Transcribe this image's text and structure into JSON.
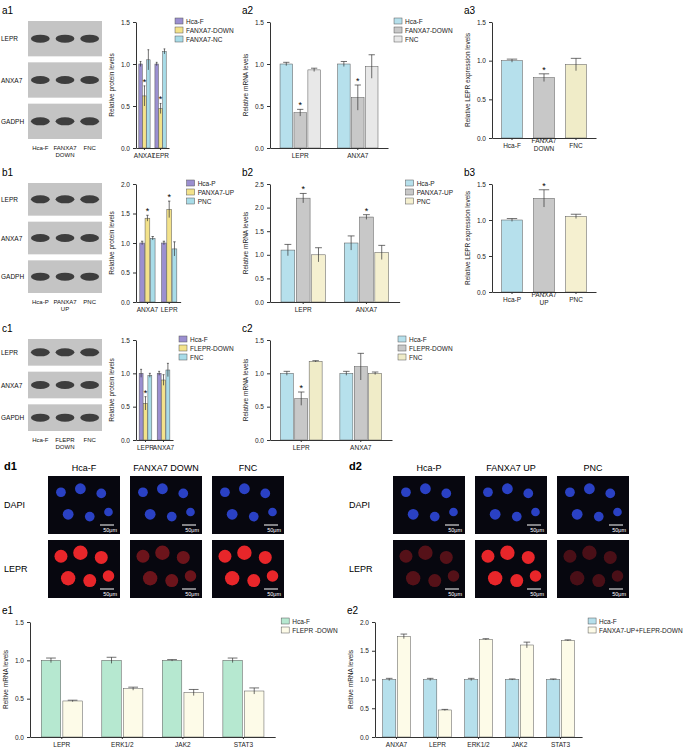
{
  "chart_data": [
    {
      "type": "bar",
      "y_label": "Relative protein levels",
      "categories": [
        "ANXA7",
        "LEPR"
      ],
      "series": [
        {
          "name": "Hca-F",
          "color": "#9b8fd0",
          "values": [
            1.0,
            1.0
          ],
          "errors": [
            0.03,
            0.02
          ]
        },
        {
          "name": "FANXA7-DOWN",
          "color": "#f3e28a",
          "values": [
            0.62,
            0.47
          ],
          "errors": [
            0.12,
            0.06
          ],
          "annotations": [
            "*",
            "*"
          ]
        },
        {
          "name": "FANXA7-NC",
          "color": "#a8dce8",
          "values": [
            1.05,
            1.15
          ],
          "errors": [
            0.12,
            0.03
          ]
        }
      ],
      "ylim": [
        0,
        1.5
      ],
      "yticks": [
        {
          "value": 0,
          "label": "0.0"
        },
        0.5,
        {
          "value": 1,
          "label": "1.0"
        },
        1.5
      ],
      "legend": "right"
    },
    {
      "type": "bar",
      "panel": "a2",
      "y_label": "Relative mRNA levels",
      "categories": [
        "LEPR",
        "ANXA7"
      ],
      "series": [
        {
          "name": "Hca-F",
          "color": "#b6e0ec",
          "values": [
            1.0,
            1.0
          ],
          "errors": [
            0.02,
            0.03
          ]
        },
        {
          "name": "FANXA7-DOWN",
          "color": "#c8c8c8",
          "values": [
            0.42,
            0.6
          ],
          "errors": [
            0.04,
            0.15
          ],
          "annotations": [
            "*",
            "*"
          ]
        },
        {
          "name": "FNC",
          "color": "#e8e8e8",
          "values": [
            0.93,
            0.97
          ],
          "errors": [
            0.02,
            0.14
          ]
        }
      ],
      "ylim": [
        0,
        1.5
      ],
      "yticks": [
        {
          "value": 0,
          "label": "0.0"
        },
        0.5,
        {
          "value": 1,
          "label": "1.0"
        },
        1.5
      ],
      "legend": "right"
    },
    {
      "type": "bar",
      "panel": "a3",
      "y_label": "Relative LEPR expression levels",
      "categories": [
        "Hca-F",
        "FANXA7 DOWN",
        "FNC"
      ],
      "values": [
        1.0,
        0.78,
        0.95
      ],
      "errors": [
        0.02,
        0.05,
        0.08
      ],
      "colors": [
        "#b6e0ec",
        "#c8c8c8",
        "#f0ecc8"
      ],
      "annotations": [
        null,
        "*",
        null
      ],
      "ylim": [
        0,
        1.5
      ],
      "yticks": [
        {
          "value": 0,
          "label": "0.0"
        },
        0.5,
        {
          "value": 1,
          "label": "1.0"
        },
        1.5
      ]
    },
    {
      "type": "bar",
      "y_label": "Relative protein levels",
      "categories": [
        "ANXA7",
        "LEPR"
      ],
      "series": [
        {
          "name": "Hca-P",
          "color": "#9b8fd0",
          "values": [
            1.0,
            1.0
          ],
          "errors": [
            0.03,
            0.03
          ]
        },
        {
          "name": "PANXA7-UP",
          "color": "#f3e28a",
          "values": [
            1.42,
            1.57
          ],
          "errors": [
            0.05,
            0.14
          ],
          "annotations": [
            "*",
            "*"
          ]
        },
        {
          "name": "PNC",
          "color": "#a8dce8",
          "values": [
            1.08,
            0.9
          ],
          "errors": [
            0.03,
            0.12
          ]
        }
      ],
      "ylim": [
        0,
        2
      ],
      "yticks": [
        {
          "value": 0,
          "label": "0.0"
        },
        0.5,
        {
          "value": 1,
          "label": "1.0"
        },
        1.5,
        {
          "value": 2,
          "label": "2.0"
        }
      ],
      "legend": "right"
    },
    {
      "type": "bar",
      "panel": "b2",
      "y_label": "Relative mRNA levels",
      "categories": [
        "LEPR",
        "ANXA7"
      ],
      "series": [
        {
          "name": "Hca-P",
          "color": "#b6e0ec",
          "values": [
            1.1,
            1.25
          ],
          "errors": [
            0.12,
            0.15
          ]
        },
        {
          "name": "PANXA7-UP",
          "color": "#c8c8c8",
          "values": [
            2.2,
            1.8
          ],
          "errors": [
            0.1,
            0.05
          ],
          "annotations": [
            "*",
            "*"
          ]
        },
        {
          "name": "PNC",
          "color": "#f5f0d0",
          "values": [
            1.0,
            1.05
          ],
          "errors": [
            0.15,
            0.15
          ]
        }
      ],
      "ylim": [
        0,
        2.5
      ],
      "yticks": [
        {
          "value": 0,
          "label": "0.0"
        },
        0.5,
        {
          "value": 1,
          "label": "1.0"
        },
        1.5,
        {
          "value": 2,
          "label": "2.0"
        },
        2.5
      ],
      "legend": "right"
    },
    {
      "type": "bar",
      "panel": "b3",
      "y_label": "Relative LEPR expression levels",
      "categories": [
        "Hca-P",
        "PANXA7 UP",
        "PNC"
      ],
      "values": [
        1.0,
        1.3,
        1.05
      ],
      "errors": [
        0.02,
        0.12,
        0.03
      ],
      "colors": [
        "#b6e0ec",
        "#c8c8c8",
        "#f5f0d0"
      ],
      "annotations": [
        null,
        "*",
        null
      ],
      "ylim": [
        0,
        1.5
      ],
      "yticks": [
        {
          "value": 0,
          "label": "0.0"
        },
        0.5,
        {
          "value": 1,
          "label": "1.0"
        },
        1.5
      ]
    },
    {
      "type": "bar",
      "y_label": "Relative protein levels",
      "categories": [
        "LEPR",
        "ANXA7"
      ],
      "series": [
        {
          "name": "Hca-F",
          "color": "#9b8fd0",
          "values": [
            1.0,
            1.0
          ],
          "errors": [
            0.06,
            0.03
          ]
        },
        {
          "name": "FLEPR-DOWN",
          "color": "#f3e28a",
          "values": [
            0.55,
            0.9
          ],
          "errors": [
            0.1,
            0.08
          ],
          "annotations": [
            "*",
            null
          ]
        },
        {
          "name": "FNC",
          "color": "#a8dce8",
          "values": [
            0.97,
            1.05
          ],
          "errors": [
            0.03,
            0.1
          ]
        }
      ],
      "ylim": [
        0,
        1.5
      ],
      "yticks": [
        {
          "value": 0,
          "label": "0.0"
        },
        0.5,
        {
          "value": 1,
          "label": "1.0"
        },
        1.5
      ],
      "legend": "right"
    },
    {
      "type": "bar",
      "panel": "c2",
      "y_label": "Relative mRNA levels",
      "categories": [
        "LEPR",
        "ANXA7"
      ],
      "series": [
        {
          "name": "Hca-F",
          "color": "#b6e0ec",
          "values": [
            1.0,
            1.0
          ],
          "errors": [
            0.03,
            0.03
          ]
        },
        {
          "name": "FLEPR-DOWN",
          "color": "#c8c8c8",
          "values": [
            0.62,
            1.1
          ],
          "errors": [
            0.1,
            0.2
          ],
          "annotations": [
            "*",
            null
          ]
        },
        {
          "name": "FNC",
          "color": "#f0ecc8",
          "values": [
            1.18,
            1.0
          ],
          "errors": [
            0.01,
            0.02
          ]
        }
      ],
      "ylim": [
        0,
        1.5
      ],
      "yticks": [
        {
          "value": 0,
          "label": "0.0"
        },
        0.5,
        {
          "value": 1,
          "label": "1.0"
        },
        1.5
      ],
      "legend": "right"
    },
    {
      "type": "bar",
      "panel": "e1",
      "y_label": "Reltive mRNA levels",
      "categories": [
        "LEPR",
        "ERK1/2",
        "JAK2",
        "STAT3"
      ],
      "series": [
        {
          "name": "Hca-F",
          "color": "#b6e8d0",
          "values": [
            1.0,
            1.0,
            1.0,
            1.0
          ],
          "errors": [
            0.03,
            0.04,
            0.01,
            0.03
          ]
        },
        {
          "name": "FLEPR -DOWN",
          "color": "#fdfbe8",
          "values": [
            0.47,
            0.63,
            0.58,
            0.6
          ],
          "errors": [
            0.01,
            0.02,
            0.04,
            0.04
          ]
        }
      ],
      "ylim": [
        0,
        1.5
      ],
      "yticks": [
        {
          "value": 0,
          "label": "0.0"
        },
        0.5,
        {
          "value": 1,
          "label": "1.0"
        },
        1.5
      ],
      "legend": "right"
    },
    {
      "type": "bar",
      "panel": "e2",
      "y_label": "Reltive mRNA levels",
      "categories": [
        "ANXA7",
        "LEPR",
        "ERK1/2",
        "JAK2",
        "STAT3"
      ],
      "series": [
        {
          "name": "Hca-F",
          "color": "#b6e0ec",
          "values": [
            1.0,
            1.0,
            1.0,
            1.0,
            1.0
          ],
          "errors": [
            0.02,
            0.02,
            0.02,
            0.01,
            0.01
          ]
        },
        {
          "name": "FANXA7-UP+FLEPR-DOWN",
          "color": "#fdfbe8",
          "values": [
            1.75,
            0.47,
            1.7,
            1.6,
            1.68
          ],
          "errors": [
            0.04,
            0.01,
            0.01,
            0.05,
            0.01
          ]
        }
      ],
      "ylim": [
        0,
        2
      ],
      "yticks": [
        {
          "value": 0,
          "label": "0.0"
        },
        0.5,
        {
          "value": 1,
          "label": "1.0"
        },
        1.5,
        {
          "value": 2,
          "label": "2.0"
        }
      ],
      "legend": "right"
    }
  ],
  "blots": [
    {
      "panel": "a1",
      "rows": [
        "LEPR",
        "ANXA7",
        "GADPH"
      ],
      "lanes": [
        "Hca-F",
        "FANXA7 DOWN",
        "FNC"
      ]
    },
    {
      "panel": "b1",
      "rows": [
        "LEPR",
        "ANXA7",
        "GADPH"
      ],
      "lanes": [
        "Hca-P",
        "PANXA7 UP",
        "PNC"
      ]
    },
    {
      "panel": "c1",
      "rows": [
        "LEPR",
        "ANXA7",
        "GAPDH"
      ],
      "lanes": [
        "Hca-F",
        "FLEPR DOWN",
        "FNC"
      ]
    }
  ],
  "images": [
    {
      "panel": "d1",
      "columns": [
        "Hca-F",
        "FANXA7 DOWN",
        "FNC"
      ],
      "rows": [
        "DAPI",
        "LEPR"
      ],
      "scale_bar": "50μm"
    },
    {
      "panel": "d2",
      "columns": [
        "Hca-P",
        "FANXA7 UP",
        "PNC"
      ],
      "rows": [
        "DAPI",
        "LEPR"
      ],
      "scale_bar": "50μm"
    }
  ]
}
